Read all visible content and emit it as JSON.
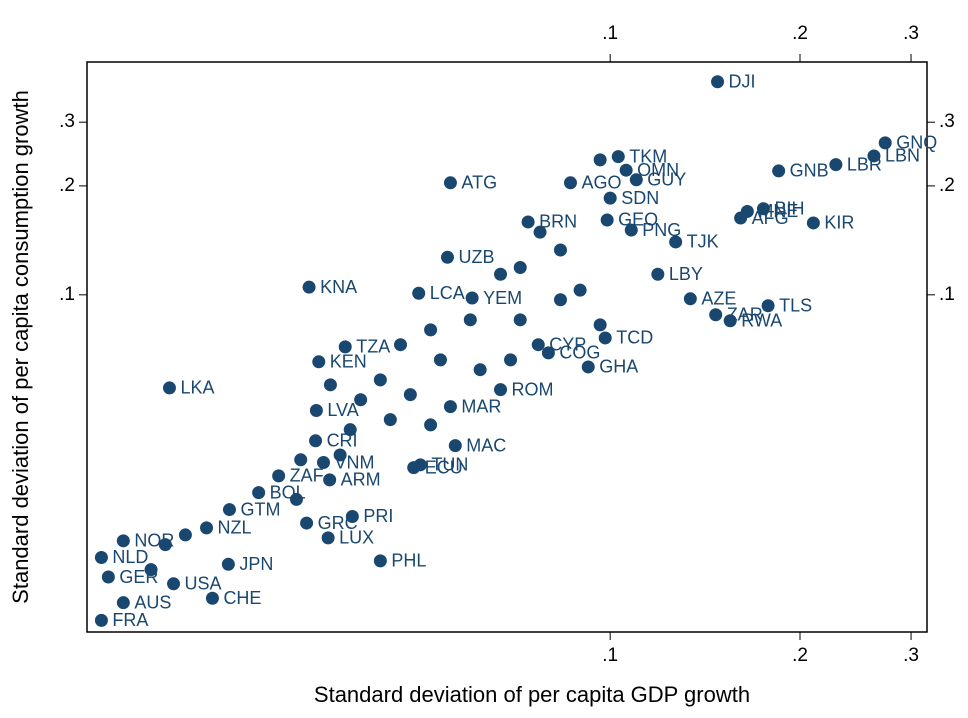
{
  "chart_data": {
    "type": "scatter",
    "x_label": "Standard deviation of per capita GDP growth",
    "y_label": "Standard deviation of per capita consumption growth",
    "log_x": true,
    "log_y": true,
    "color": "#1a476f",
    "xlim": [
      0.0148,
      0.318
    ],
    "ylim": [
      0.0117,
      0.44
    ],
    "xticks": [
      {
        "value": 0.1,
        "label": ".1"
      },
      {
        "value": 0.2,
        "label": ".2"
      },
      {
        "value": 0.3,
        "label": ".3"
      }
    ],
    "yticks": [
      {
        "value": 0.1,
        "label": ".1"
      },
      {
        "value": 0.2,
        "label": ".2"
      },
      {
        "value": 0.3,
        "label": ".3"
      }
    ],
    "labels": [
      "DJI",
      "GNQ",
      "LBN",
      "LBR",
      "GNB",
      "KIR",
      "BIH",
      "MNE",
      "AFG",
      "TJK",
      "LBY",
      "AZE",
      "TLS",
      "ZAR",
      "RWA",
      "ATG",
      "AGO",
      "GUY",
      "SDN",
      "TKM",
      "OMN",
      "GEO",
      "PNG",
      "BRN",
      "UZB",
      "KNA",
      "LCA",
      "YEM",
      "TCD",
      "LKA",
      "GHA",
      "ROM",
      "MAR",
      "MAC",
      "TUN",
      "ECU",
      "VNM",
      "ARM",
      "BOL",
      "GTM",
      "PRI",
      "GRC",
      "LUX",
      "PHL",
      "NZL",
      "JPN",
      "CHE",
      "USA",
      "AUS",
      "FRA",
      "GER",
      "NLD",
      "NOR",
      "ZAF",
      "KEN",
      "TZA",
      "LVA",
      "CRI",
      "CYP",
      "COG",
      null,
      null,
      null,
      null,
      null,
      null,
      null,
      null,
      null,
      null,
      null,
      null,
      null,
      null,
      null,
      null,
      null,
      null,
      null,
      null,
      null,
      null,
      null,
      null,
      null,
      null,
      null,
      null
    ],
    "x": [
      0.148,
      0.273,
      0.262,
      0.228,
      0.185,
      0.21,
      0.175,
      0.165,
      0.161,
      0.127,
      0.119,
      0.134,
      0.178,
      0.147,
      0.155,
      0.0558,
      0.0865,
      0.11,
      0.1,
      0.103,
      0.106,
      0.0989,
      0.108,
      0.0741,
      0.0552,
      0.0333,
      0.0497,
      0.0604,
      0.0982,
      0.02,
      0.0923,
      0.067,
      0.0558,
      0.0568,
      0.05,
      0.0488,
      0.0351,
      0.0359,
      0.0277,
      0.0249,
      0.039,
      0.033,
      0.0357,
      0.0432,
      0.0229,
      0.0248,
      0.0234,
      0.0203,
      0.0169,
      0.0156,
      0.016,
      0.0156,
      0.0169,
      0.0298,
      0.0345,
      0.038,
      0.0342,
      0.0341,
      0.0769,
      0.0798,
      0.0834,
      0.0774,
      0.0964,
      0.072,
      0.067,
      0.0896,
      0.0834,
      0.06,
      0.0519,
      0.0465,
      0.0538,
      0.0622,
      0.0432,
      0.0482,
      0.0402,
      0.0448,
      0.0519,
      0.0387,
      0.0373,
      0.0323,
      0.0318,
      0.0197,
      0.0212,
      0.0187,
      0.072,
      0.0964,
      0.0695,
      0.036
    ],
    "y": [
      0.388,
      0.263,
      0.242,
      0.229,
      0.22,
      0.158,
      0.173,
      0.17,
      0.163,
      0.14,
      0.114,
      0.0975,
      0.0933,
      0.0881,
      0.0848,
      0.204,
      0.204,
      0.208,
      0.185,
      0.241,
      0.221,
      0.161,
      0.151,
      0.159,
      0.127,
      0.105,
      0.101,
      0.098,
      0.076,
      0.0553,
      0.0632,
      0.0547,
      0.0491,
      0.0383,
      0.0339,
      0.0333,
      0.0344,
      0.0308,
      0.0284,
      0.0255,
      0.0244,
      0.0234,
      0.0213,
      0.0184,
      0.0227,
      0.018,
      0.0145,
      0.0159,
      0.0141,
      0.0126,
      0.0166,
      0.0188,
      0.0209,
      0.0316,
      0.0653,
      0.0718,
      0.0479,
      0.0395,
      0.0728,
      0.0691,
      0.133,
      0.149,
      0.236,
      0.119,
      0.114,
      0.103,
      0.0969,
      0.0853,
      0.08,
      0.0728,
      0.0661,
      0.0621,
      0.0582,
      0.053,
      0.0513,
      0.0452,
      0.0437,
      0.0424,
      0.0361,
      0.035,
      0.0272,
      0.0204,
      0.0217,
      0.0174,
      0.0853,
      0.0826,
      0.0661,
      0.0564
    ]
  }
}
